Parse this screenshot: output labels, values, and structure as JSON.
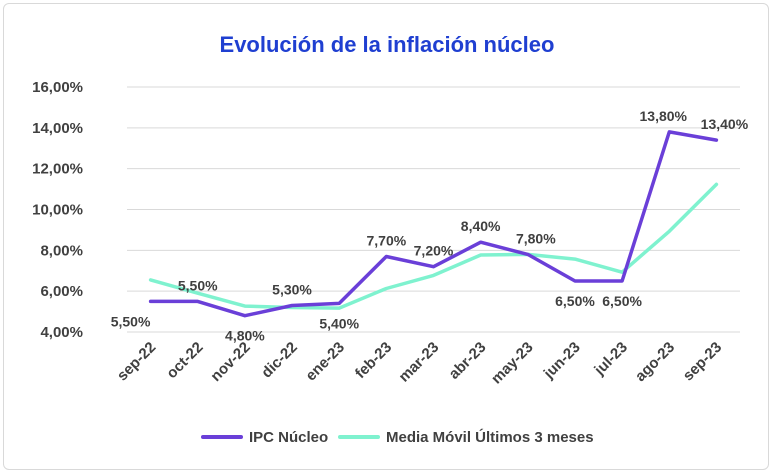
{
  "chart_data": {
    "type": "line",
    "title": "Evolución de la inflación núcleo",
    "xlabel": "",
    "ylabel": "",
    "categories": [
      "sep-22",
      "oct-22",
      "nov-22",
      "dic-22",
      "ene-23",
      "feb-23",
      "mar-23",
      "abr-23",
      "may-23",
      "jun-23",
      "jul-23",
      "ago-23",
      "sep-23"
    ],
    "ylim": [
      4,
      16
    ],
    "yticks": [
      "4,00%",
      "6,00%",
      "8,00%",
      "10,00%",
      "12,00%",
      "14,00%",
      "16,00%"
    ],
    "grid": true,
    "legend_position": "bottom",
    "series": [
      {
        "name": "IPC Núcleo",
        "color": "#6a3fd8",
        "values": [
          5.5,
          5.5,
          4.8,
          5.3,
          5.4,
          7.7,
          7.2,
          8.4,
          7.8,
          6.5,
          6.5,
          13.8,
          13.4
        ],
        "labels": [
          "5,50%",
          "5,50%",
          "4,80%",
          "5,30%",
          "5,40%",
          "7,70%",
          "7,20%",
          "8,40%",
          "7,80%",
          "6,50%",
          "6,50%",
          "13,80%",
          "13,40%"
        ]
      },
      {
        "name": "Media Móvil Últimos 3 meses",
        "color": "#7ff2cf",
        "values": [
          6.55,
          5.9,
          5.27,
          5.2,
          5.17,
          6.13,
          6.77,
          7.77,
          7.8,
          7.57,
          6.93,
          8.93,
          11.23
        ]
      }
    ],
    "title_color": "#1f3fd1"
  }
}
